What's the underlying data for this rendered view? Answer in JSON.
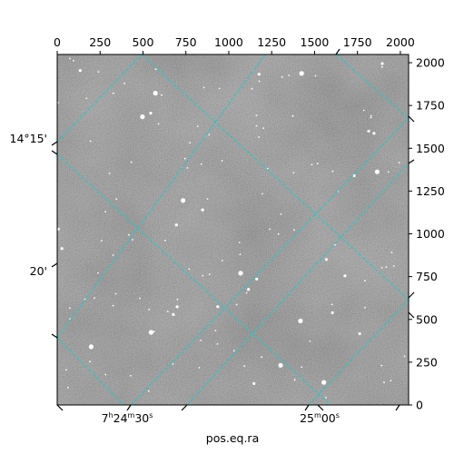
{
  "chart_data": {
    "type": "image",
    "image_size": [
      2048,
      2048
    ],
    "pixel_axes": {
      "bottom": {
        "range": [
          0,
          2048
        ]
      },
      "top": {
        "ticks": [
          0,
          250,
          500,
          750,
          1000,
          1250,
          1500,
          1750,
          2000
        ],
        "labels": [
          "0",
          "250",
          "500",
          "750",
          "1000",
          "1250",
          "1500",
          "1750",
          "2000"
        ]
      },
      "right": {
        "ticks": [
          0,
          250,
          500,
          750,
          1000,
          1250,
          1500,
          1750,
          2000
        ],
        "labels": [
          "0",
          "250",
          "500",
          "750",
          "1000",
          "1250",
          "1500",
          "1750",
          "2000"
        ]
      }
    },
    "world_axes": {
      "xlabel": "pos.eq.ra",
      "ra_tick_labels": [
        {
          "label": "7h24m30s",
          "hours": "7",
          "minutes": "24",
          "seconds": "30",
          "value_s": 24.5
        },
        {
          "label": "25m00s",
          "minutes": "25",
          "seconds": "00",
          "value_s": 25.0
        }
      ],
      "dec_tick_labels": [
        "14°15'",
        "20'"
      ]
    },
    "grid": true,
    "grid_color": "#2ec4c4",
    "image_colormap": "gray",
    "background_gray": "#6e6e6e",
    "star_color": "#ffffff"
  }
}
